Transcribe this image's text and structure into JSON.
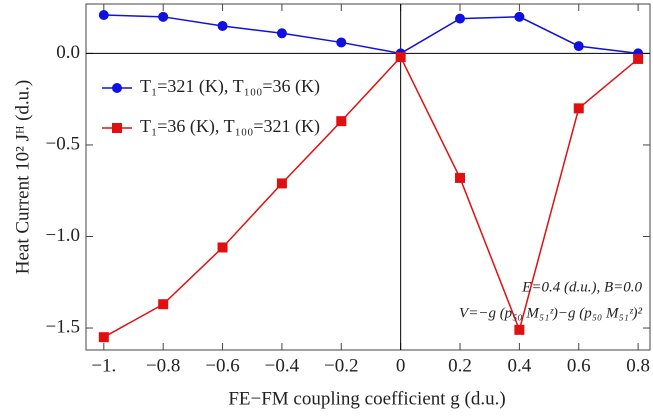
{
  "chart_data": {
    "type": "line",
    "x_label": "FE−FM coupling coefficient g (d.u.)",
    "y_label": "Heat Current 10² Jᴴ (d.u.)",
    "x": [
      -1,
      -0.8,
      -0.6,
      -0.4,
      -0.2,
      0,
      0.2,
      0.4,
      0.6,
      0.8
    ],
    "series": [
      {
        "name": "T₁=321 (K), T₁₀₀=36 (K)",
        "color": "#1010e0",
        "marker": "circle",
        "values": [
          0.21,
          0.2,
          0.15,
          0.11,
          0.06,
          0.0,
          0.19,
          0.2,
          0.04,
          0.0
        ]
      },
      {
        "name": "T₁=36 (K), T₁₀₀=321 (K)",
        "color": "#e01010",
        "marker": "square",
        "values": [
          -1.55,
          -1.37,
          -1.06,
          -0.71,
          -0.37,
          -0.02,
          -0.68,
          -1.51,
          -0.3,
          -0.03
        ]
      }
    ],
    "xlim": [
      -1.06,
      0.84
    ],
    "ylim": [
      -1.62,
      0.27
    ],
    "xticks": [
      {
        "value": -1,
        "label": "−1."
      },
      {
        "value": -0.8,
        "label": "−0.8"
      },
      {
        "value": -0.6,
        "label": "−0.6"
      },
      {
        "value": -0.4,
        "label": "−0.4"
      },
      {
        "value": -0.2,
        "label": "−0.2"
      },
      0,
      0.2,
      0.4,
      0.6,
      0.8
    ],
    "yticks": [
      {
        "value": 0,
        "label": "0.0"
      },
      {
        "value": -0.5,
        "label": "−0.5"
      },
      {
        "value": -1,
        "label": "−1.0"
      },
      {
        "value": -1.5,
        "label": "−1.5"
      }
    ],
    "grid": false,
    "legend_loc": "upper left",
    "annotations": [
      "E=0.4 (d.u.), B=0.0",
      "V=−g (p₅₀ M₅₁ᶻ)−g (p₅₀ M₅₁ᶻ)²"
    ]
  }
}
